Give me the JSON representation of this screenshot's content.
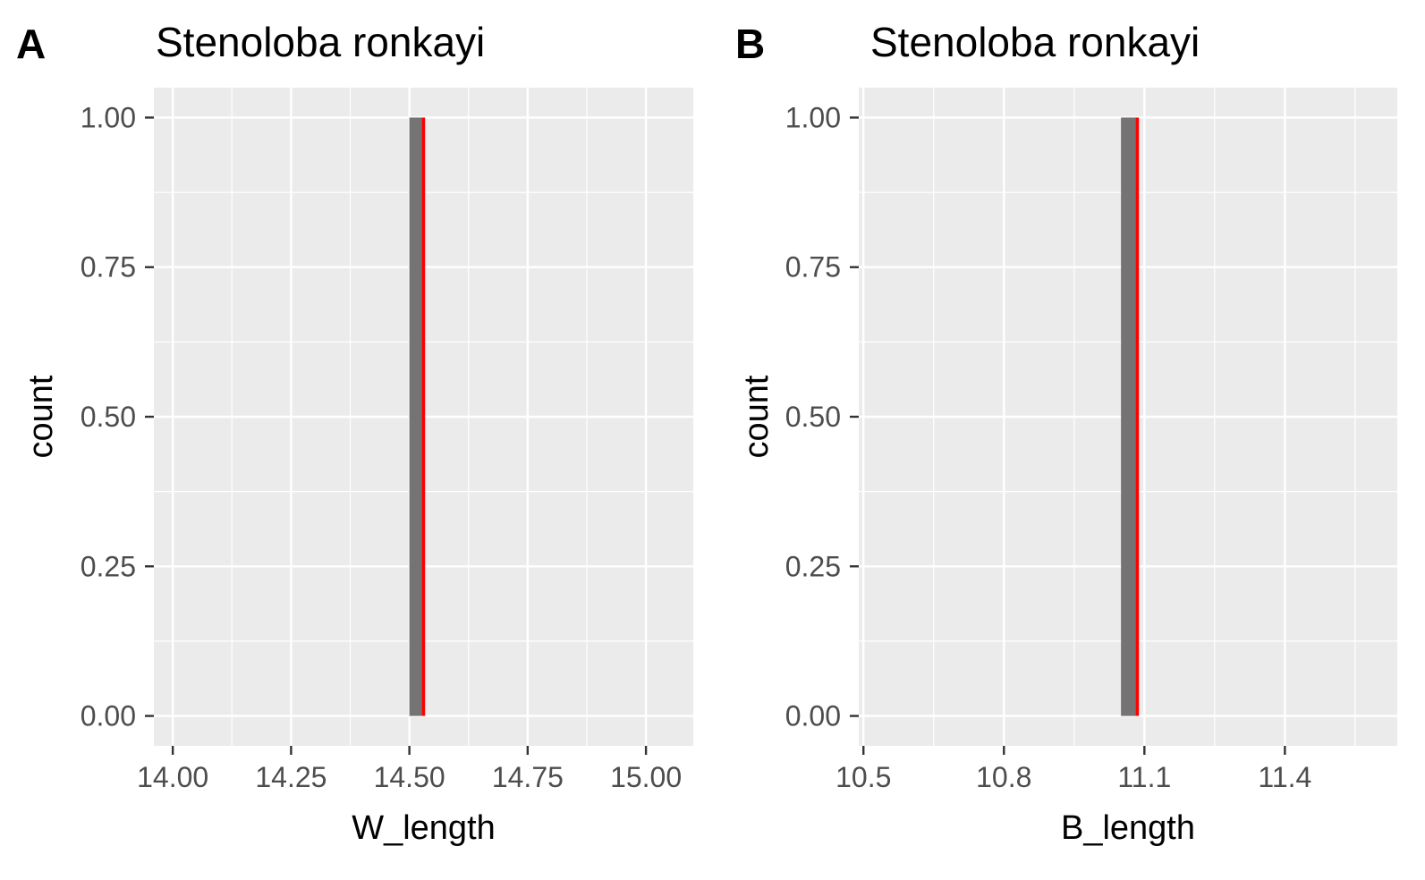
{
  "chart_data": [
    {
      "type": "bar",
      "panel": "A",
      "title": "Stenoloba ronkayi",
      "xlabel": "W_length",
      "ylabel": "count",
      "xlim": [
        13.96,
        15.1
      ],
      "ylim": [
        -0.05,
        1.05
      ],
      "xticks": [
        14.0,
        14.25,
        14.5,
        14.75,
        15.0
      ],
      "xtick_labels": [
        "14.00",
        "14.25",
        "14.50",
        "14.75",
        "15.00"
      ],
      "yticks": [
        0,
        0.25,
        0.5,
        0.75,
        1.0
      ],
      "ytick_labels": [
        "0.00",
        "0.25",
        "0.50",
        "0.75",
        "1.00"
      ],
      "bars": [
        {
          "x0": 14.5,
          "x1": 14.53,
          "count": 1
        }
      ],
      "vline": 14.53,
      "grid": true,
      "colors": {
        "panel_bg": "#ebebeb",
        "grid": "#ffffff",
        "bar": "#767374",
        "vline": "#ff0000"
      }
    },
    {
      "type": "bar",
      "panel": "B",
      "title": "Stenoloba ronkayi",
      "xlabel": "B_length",
      "ylabel": "count",
      "xlim": [
        10.49,
        11.64
      ],
      "ylim": [
        -0.05,
        1.05
      ],
      "xticks": [
        10.5,
        10.8,
        11.1,
        11.4
      ],
      "xtick_labels": [
        "10.5",
        "10.8",
        "11.1",
        "11.4"
      ],
      "yticks": [
        0,
        0.25,
        0.5,
        0.75,
        1.0
      ],
      "ytick_labels": [
        "0.00",
        "0.25",
        "0.50",
        "0.75",
        "1.00"
      ],
      "bars": [
        {
          "x0": 11.05,
          "x1": 11.085,
          "count": 1
        }
      ],
      "vline": 11.085,
      "grid": true,
      "colors": {
        "panel_bg": "#ebebeb",
        "grid": "#ffffff",
        "bar": "#767374",
        "vline": "#ff0000"
      }
    }
  ]
}
